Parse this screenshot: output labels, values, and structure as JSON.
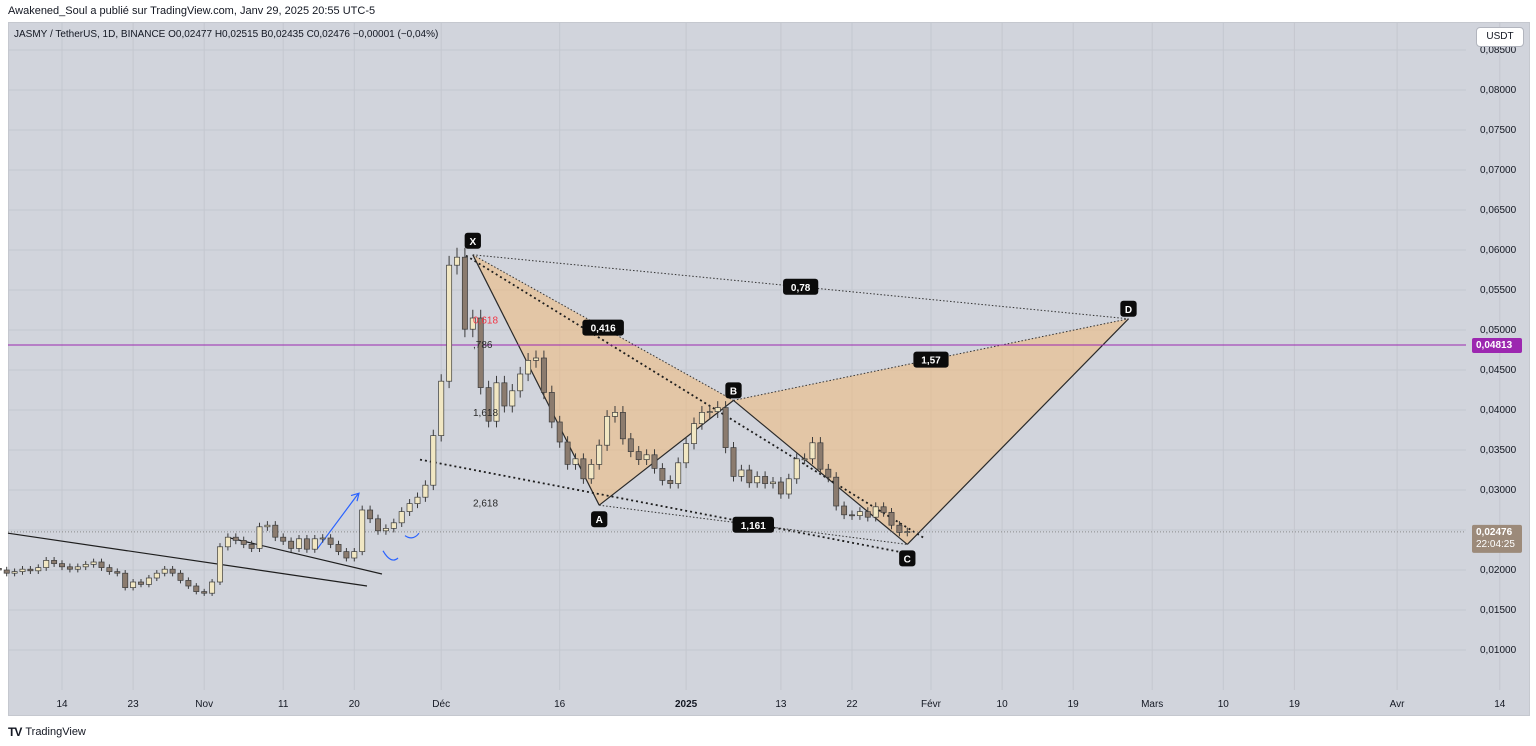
{
  "header": {
    "publisher_line": "Awakened_Soul a publié sur TradingView.com, Janv 29, 2025 20:55 UTC-5",
    "legend_line": "JASMY / TetherUS, 1D, BINANCE  O0,02477  H0,02515  B0,02435  C0,02476  −0,00001 (−0,04%)"
  },
  "toolbar": {
    "unit_label": "USDT"
  },
  "footer": {
    "brand": "TradingView",
    "logo_icon": "tradingview-logo-icon"
  },
  "colors": {
    "background": "#d1d4dc",
    "candle_up": "#f1e7c3",
    "candle_down": "#8b7b6e",
    "pattern_fill": "#f2b97a",
    "alert_line": "#9c27b0",
    "price_tag": "#9c8a7a",
    "up_arrow": "#2962ff"
  },
  "chart_data": {
    "type": "candlestick",
    "y_axis": {
      "range": [
        0.005,
        0.0885
      ],
      "ticks": [
        "0,08500",
        "0,08000",
        "0,07500",
        "0,07000",
        "0,06500",
        "0,06000",
        "0,05500",
        "0,05000",
        "0,04500",
        "0,04000",
        "0,03500",
        "0,03000",
        "0,02500",
        "0,02000",
        "0,01500",
        "0,01000"
      ],
      "tick_values": [
        0.085,
        0.08,
        0.075,
        0.07,
        0.065,
        0.06,
        0.055,
        0.05,
        0.045,
        0.04,
        0.035,
        0.03,
        0.025,
        0.02,
        0.015,
        0.01
      ]
    },
    "x_axis": {
      "ticks": [
        {
          "label": "14",
          "date": "2024-10-14"
        },
        {
          "label": "23",
          "date": "2024-10-23"
        },
        {
          "label": "Nov",
          "date": "2024-11-01"
        },
        {
          "label": "11",
          "date": "2024-11-11"
        },
        {
          "label": "20",
          "date": "2024-11-20"
        },
        {
          "label": "Déc",
          "date": "2024-12-01"
        },
        {
          "label": "16",
          "date": "2024-12-16"
        },
        {
          "label": "2025",
          "date": "2025-01-01",
          "bold": true
        },
        {
          "label": "13",
          "date": "2025-01-13"
        },
        {
          "label": "22",
          "date": "2025-01-22"
        },
        {
          "label": "Févr",
          "date": "2025-02-01"
        },
        {
          "label": "10",
          "date": "2025-02-10"
        },
        {
          "label": "19",
          "date": "2025-02-19"
        },
        {
          "label": "Mars",
          "date": "2025-03-01"
        },
        {
          "label": "10",
          "date": "2025-03-10"
        },
        {
          "label": "19",
          "date": "2025-03-19"
        },
        {
          "label": "Avr",
          "date": "2025-04-01"
        },
        {
          "label": "14",
          "date": "2025-04-14"
        }
      ]
    },
    "candles_close": [
      0.0205,
      0.0202,
      0.02,
      0.0196,
      0.0198,
      0.0201,
      0.0199,
      0.0203,
      0.0212,
      0.0208,
      0.0204,
      0.0201,
      0.0204,
      0.0207,
      0.021,
      0.0203,
      0.0198,
      0.0196,
      0.0178,
      0.0185,
      0.0182,
      0.019,
      0.0196,
      0.0201,
      0.0196,
      0.0187,
      0.018,
      0.0173,
      0.0171,
      0.0185,
      0.0229,
      0.0241,
      0.0237,
      0.0232,
      0.0227,
      0.0254,
      0.0256,
      0.0241,
      0.0236,
      0.0227,
      0.0239,
      0.0226,
      0.0239,
      0.024,
      0.0232,
      0.0223,
      0.0215,
      0.0223,
      0.0275,
      0.0264,
      0.0249,
      0.0252,
      0.0259,
      0.0273,
      0.0283,
      0.0291,
      0.0306,
      0.0368,
      0.0436,
      0.0581,
      0.0591,
      0.0501,
      0.0515,
      0.0428,
      0.0386,
      0.0434,
      0.0405,
      0.0424,
      0.0445,
      0.0462,
      0.0465,
      0.0422,
      0.0385,
      0.036,
      0.0332,
      0.0339,
      0.0314,
      0.0332,
      0.0356,
      0.0392,
      0.0397,
      0.0364,
      0.0348,
      0.0338,
      0.0344,
      0.0327,
      0.0312,
      0.0308,
      0.0334,
      0.0358,
      0.0383,
      0.0397,
      0.0398,
      0.0403,
      0.0353,
      0.0317,
      0.0325,
      0.0309,
      0.0317,
      0.0308,
      0.031,
      0.0295,
      0.0314,
      0.0339,
      0.0339,
      0.0359,
      0.0326,
      0.0316,
      0.028,
      0.0269,
      0.0268,
      0.0273,
      0.0266,
      0.0279,
      0.0272,
      0.0256,
      0.0247,
      0.0248
    ],
    "last_candle_date": "2025-01-29",
    "harmonic_pattern": {
      "points": [
        {
          "label": "X",
          "date": "2024-12-05",
          "price": 0.0594
        },
        {
          "label": "A",
          "date": "2024-12-21",
          "price": 0.0281
        },
        {
          "label": "B",
          "date": "2025-01-07",
          "price": 0.0412
        },
        {
          "label": "C",
          "date": "2025-01-29",
          "price": 0.0232
        },
        {
          "label": "D",
          "date": "2025-02-26",
          "price": 0.0514
        }
      ],
      "ratios": [
        {
          "label": "0,416",
          "between": "X-A-B"
        },
        {
          "label": "1,161",
          "between": "A-B-C"
        },
        {
          "label": "1,57",
          "between": "B-C-D"
        },
        {
          "label": "0,78",
          "between": "X-D"
        }
      ]
    },
    "fib_labels": [
      {
        "label": "0,618",
        "price": 0.0512,
        "color": "#f23645"
      },
      {
        "label": ",786",
        "price": 0.0481
      },
      {
        "label": "1,618",
        "price": 0.0396
      },
      {
        "label": "2,618",
        "price": 0.0283
      }
    ],
    "horizontal_line": {
      "price": 0.04813,
      "label": "0,04813"
    },
    "current_price": {
      "price": 0.02476,
      "label": "0,02476",
      "countdown": "22:04:25"
    }
  }
}
